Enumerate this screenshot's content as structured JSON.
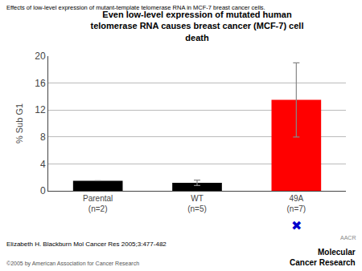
{
  "chart_data": {
    "type": "bar",
    "suptitle": "Effects of low-level expression of mutant-template telomerase RNA in MCF-7 breast cancer cells.",
    "title": "Even low-level expression of mutated human\ntelomerase RNA causes breast cancer (MCF-7) cell\ndeath",
    "ylabel": "% Sub G1",
    "categories": [
      "Parental\n(n=2)",
      "WT\n(n=5)",
      "49A\n(n=7)"
    ],
    "values": [
      1.5,
      1.2,
      13.5
    ],
    "errors": [
      0.0,
      0.4,
      5.5
    ],
    "colors": [
      "#000000",
      "#000000",
      "#ff0000"
    ],
    "ylim": [
      0,
      20
    ],
    "yticks": [
      0,
      4,
      8,
      12,
      16,
      20
    ],
    "grid": true,
    "annotations": [
      {
        "text": "✖",
        "x": "49A\n(n=7)",
        "color": "#0000cc"
      }
    ],
    "footer": "Elizabeth H. Blackburn Mol Cancer Res 2005;3:477-482",
    "copyright": "©2005 by American Association for Cancer Research",
    "journal": "Molecular\nCancer Research",
    "publisher": "AACR"
  }
}
